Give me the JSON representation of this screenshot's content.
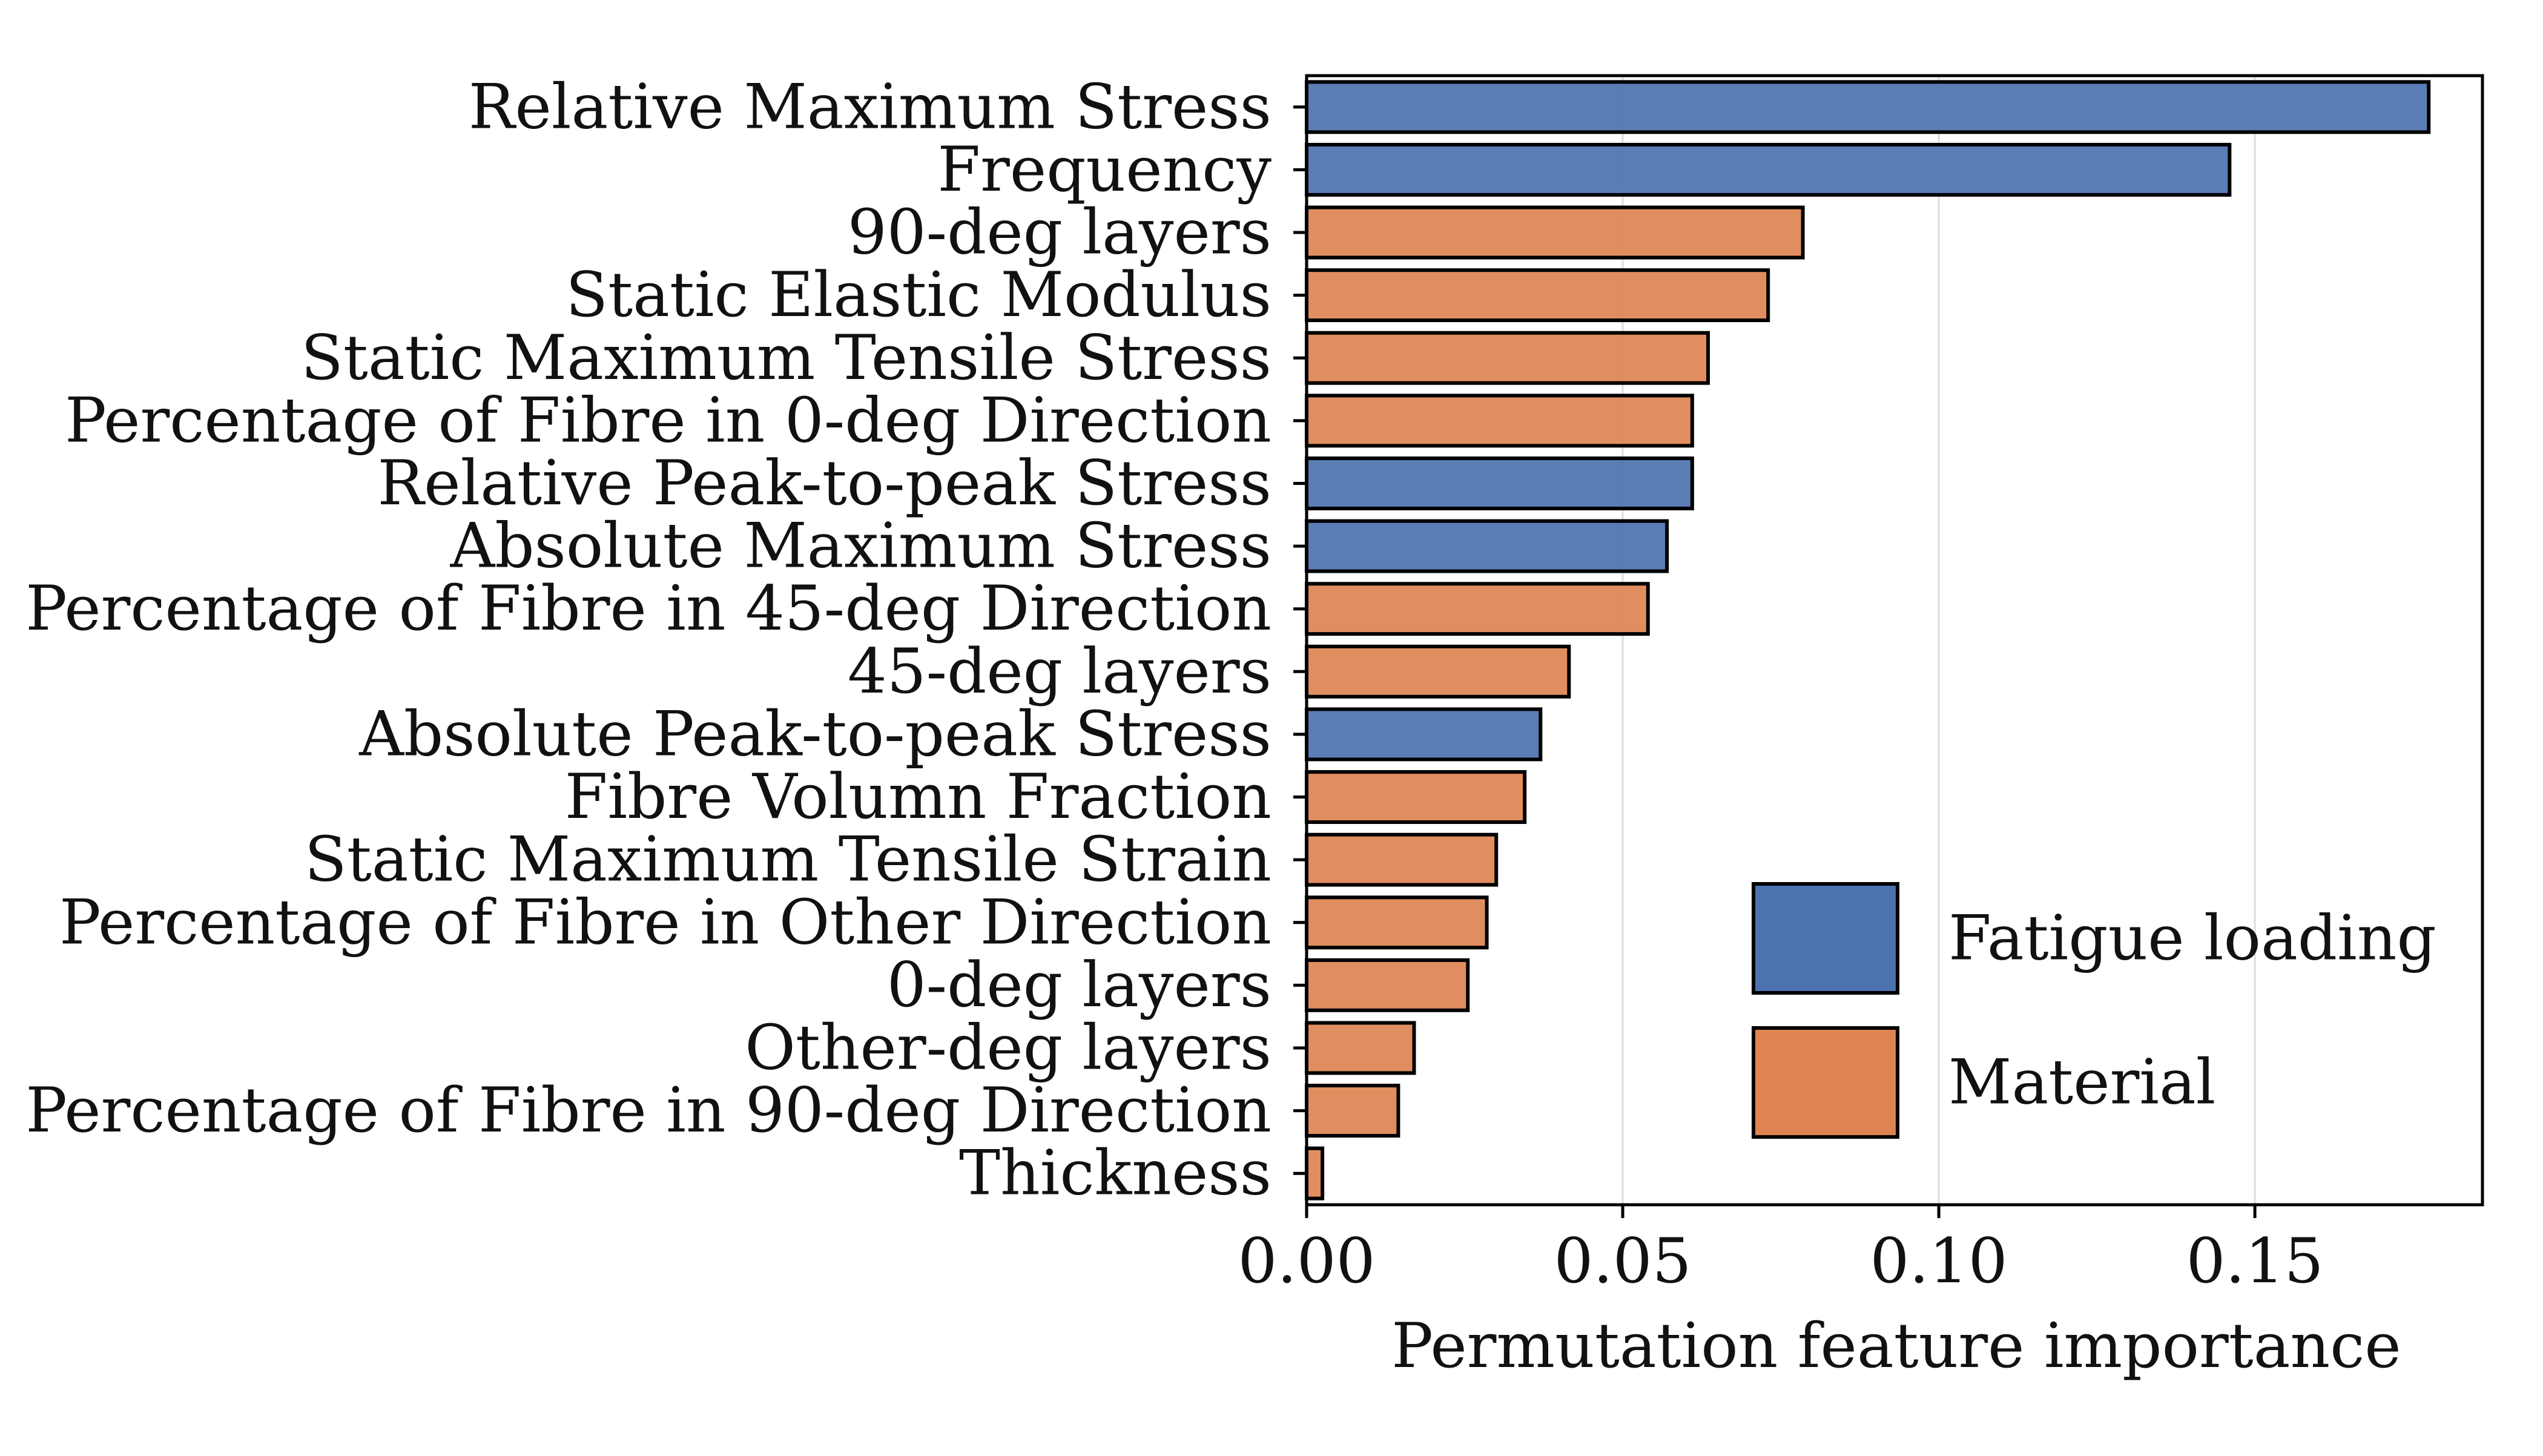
{
  "chart_data": {
    "type": "bar",
    "orientation": "horizontal",
    "xlabel": "Permutation feature importance",
    "ylabel": "",
    "xlim": [
      0,
      0.186
    ],
    "xticks": [
      0.0,
      0.05,
      0.1,
      0.15
    ],
    "xtick_labels": [
      "0.00",
      "0.05",
      "0.10",
      "0.15"
    ],
    "grid": "vertical",
    "legend_position": "lower-right",
    "groups": [
      {
        "name": "Fatigue loading",
        "color": "#4c72b0"
      },
      {
        "name": "Material",
        "color": "#dd8452"
      }
    ],
    "categories": [
      "Relative Maximum Stress",
      "Frequency",
      "90-deg layers",
      "Static Elastic Modulus",
      "Static Maximum Tensile Stress",
      "Percentage of Fibre in 0-deg Direction",
      "Relative Peak-to-peak Stress",
      "Absolute Maximum Stress",
      "Percentage of Fibre in 45-deg Direction",
      "45-deg layers",
      "Absolute Peak-to-peak Stress",
      "Fibre Volumn Fraction",
      "Static Maximum Tensile Strain",
      "Percentage of Fibre in Other Direction",
      "0-deg layers",
      "Other-deg layers",
      "Percentage of Fibre in 90-deg Direction",
      "Thickness"
    ],
    "values": [
      0.1775,
      0.146,
      0.0785,
      0.073,
      0.0635,
      0.061,
      0.061,
      0.057,
      0.054,
      0.0415,
      0.037,
      0.0345,
      0.03,
      0.0285,
      0.0255,
      0.017,
      0.0145,
      0.0025
    ],
    "bar_groups": [
      "Fatigue loading",
      "Fatigue loading",
      "Material",
      "Material",
      "Material",
      "Material",
      "Fatigue loading",
      "Fatigue loading",
      "Material",
      "Material",
      "Fatigue loading",
      "Material",
      "Material",
      "Material",
      "Material",
      "Material",
      "Material",
      "Material"
    ]
  }
}
